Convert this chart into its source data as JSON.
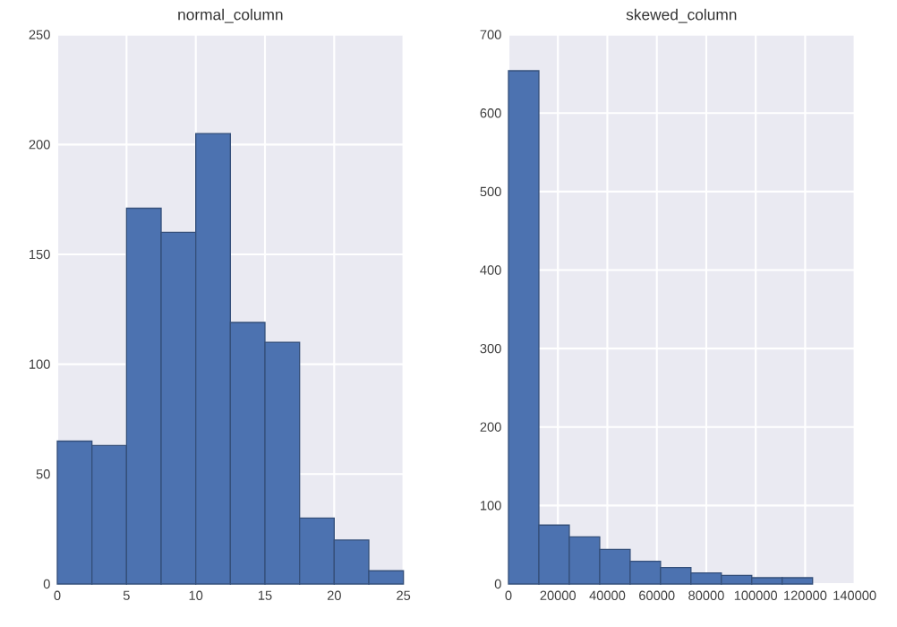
{
  "chart_data": [
    {
      "type": "histogram",
      "title": "normal_column",
      "bins": [
        0,
        2.5,
        5,
        7.5,
        10,
        12.5,
        15,
        17.5,
        20,
        22.5,
        25
      ],
      "values": [
        65,
        63,
        171,
        160,
        205,
        119,
        110,
        30,
        20,
        6
      ],
      "color": "#4c72b0",
      "xlim": [
        0,
        25
      ],
      "ylim": [
        0,
        250
      ],
      "xticks": [
        0,
        5,
        10,
        15,
        20,
        25
      ],
      "yticks": [
        0,
        50,
        100,
        150,
        200,
        250
      ],
      "grid": true
    },
    {
      "type": "histogram",
      "title": "skewed_column",
      "bins": [
        0,
        12300,
        24600,
        36900,
        49200,
        61500,
        73800,
        86100,
        98400,
        110700,
        123000
      ],
      "values": [
        654,
        75,
        60,
        44,
        29,
        21,
        14,
        11,
        8,
        8
      ],
      "color": "#4c72b0",
      "xlim": [
        0,
        140000
      ],
      "ylim": [
        0,
        700
      ],
      "xticks": [
        0,
        20000,
        40000,
        60000,
        80000,
        100000,
        120000,
        140000
      ],
      "yticks": [
        0,
        100,
        200,
        300,
        400,
        500,
        600,
        700
      ],
      "grid": true
    }
  ]
}
